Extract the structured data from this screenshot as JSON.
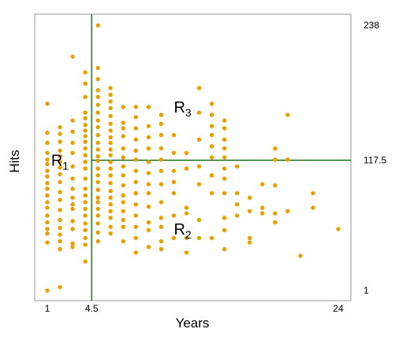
{
  "chart_data": {
    "type": "scatter",
    "title": "",
    "xlabel": "Years",
    "ylabel": "Hits",
    "xlim": [
      0.0,
      25.0
    ],
    "ylim": [
      -8.0,
      248.0
    ],
    "x_ticks": [
      {
        "value": 1,
        "label": "1"
      },
      {
        "value": 4.5,
        "label": "4.5"
      },
      {
        "value": 24,
        "label": "24"
      }
    ],
    "y_ticks_right": [
      {
        "value": 238,
        "label": "238"
      },
      {
        "value": 117.5,
        "label": "117.5"
      },
      {
        "value": 1,
        "label": "1"
      }
    ],
    "grid": false,
    "legend": "none",
    "colors": {
      "points": "#E69F00",
      "split_lines": "#006400",
      "frame": "#999999"
    },
    "split_lines": [
      {
        "orientation": "vertical",
        "x": 4.5,
        "y_from": -8,
        "y_to": 248
      },
      {
        "orientation": "horizontal",
        "y": 117.5,
        "x_from": 4.5,
        "x_to": 25
      }
    ],
    "regions": [
      {
        "main": "R",
        "sub": "1",
        "x": 1.3,
        "y": 117.5
      },
      {
        "main": "R",
        "sub": "3",
        "x": 11.0,
        "y": 165
      },
      {
        "main": "R",
        "sub": "2",
        "x": 11.0,
        "y": 56
      }
    ],
    "points": [
      [
        1,
        1
      ],
      [
        1,
        44
      ],
      [
        1,
        52
      ],
      [
        1,
        56
      ],
      [
        1,
        62
      ],
      [
        1,
        68
      ],
      [
        1,
        75
      ],
      [
        1,
        80
      ],
      [
        1,
        86
      ],
      [
        1,
        92
      ],
      [
        1,
        97
      ],
      [
        1,
        103
      ],
      [
        1,
        108
      ],
      [
        1,
        114
      ],
      [
        1,
        118
      ],
      [
        1,
        124
      ],
      [
        1,
        133
      ],
      [
        1,
        142
      ],
      [
        1,
        168
      ],
      [
        2,
        4
      ],
      [
        2,
        38
      ],
      [
        2,
        45
      ],
      [
        2,
        51
      ],
      [
        2,
        57
      ],
      [
        2,
        64
      ],
      [
        2,
        73
      ],
      [
        2,
        82
      ],
      [
        2,
        89
      ],
      [
        2,
        98
      ],
      [
        2,
        105
      ],
      [
        2,
        111
      ],
      [
        2,
        116
      ],
      [
        2,
        121
      ],
      [
        2,
        126
      ],
      [
        2,
        134
      ],
      [
        2,
        141
      ],
      [
        2,
        147
      ],
      [
        3,
        40
      ],
      [
        3,
        43
      ],
      [
        3,
        56
      ],
      [
        3,
        63
      ],
      [
        3,
        74
      ],
      [
        3,
        78
      ],
      [
        3,
        84
      ],
      [
        3,
        92
      ],
      [
        3,
        101
      ],
      [
        3,
        112
      ],
      [
        3,
        124
      ],
      [
        3,
        133
      ],
      [
        3,
        143
      ],
      [
        3,
        153
      ],
      [
        3,
        210
      ],
      [
        4,
        27
      ],
      [
        4,
        42
      ],
      [
        4,
        48
      ],
      [
        4,
        55
      ],
      [
        4,
        61
      ],
      [
        4,
        68
      ],
      [
        4,
        74
      ],
      [
        4,
        80
      ],
      [
        4,
        86
      ],
      [
        4,
        92
      ],
      [
        4,
        101
      ],
      [
        4,
        110
      ],
      [
        4,
        116
      ],
      [
        4,
        122
      ],
      [
        4,
        128
      ],
      [
        4,
        134
      ],
      [
        4,
        139
      ],
      [
        4,
        144
      ],
      [
        4,
        149
      ],
      [
        4,
        155
      ],
      [
        4,
        160
      ],
      [
        4,
        174
      ],
      [
        4,
        186
      ],
      [
        4,
        196
      ],
      [
        5,
        45
      ],
      [
        5,
        53
      ],
      [
        5,
        61
      ],
      [
        5,
        68
      ],
      [
        5,
        74
      ],
      [
        5,
        80
      ],
      [
        5,
        84
      ],
      [
        5,
        91
      ],
      [
        5,
        98
      ],
      [
        5,
        104
      ],
      [
        5,
        110
      ],
      [
        5,
        117
      ],
      [
        5,
        121
      ],
      [
        5,
        127
      ],
      [
        5,
        133
      ],
      [
        5,
        140
      ],
      [
        5,
        147
      ],
      [
        5,
        153
      ],
      [
        5,
        160
      ],
      [
        5,
        167
      ],
      [
        5,
        174
      ],
      [
        5,
        180
      ],
      [
        5,
        190
      ],
      [
        5,
        200
      ],
      [
        5,
        238
      ],
      [
        6,
        52
      ],
      [
        6,
        58
      ],
      [
        6,
        66
      ],
      [
        6,
        72
      ],
      [
        6,
        78
      ],
      [
        6,
        84
      ],
      [
        6,
        90
      ],
      [
        6,
        97
      ],
      [
        6,
        104
      ],
      [
        6,
        110
      ],
      [
        6,
        116
      ],
      [
        6,
        122
      ],
      [
        6,
        127
      ],
      [
        6,
        133
      ],
      [
        6,
        138
      ],
      [
        6,
        144
      ],
      [
        6,
        150
      ],
      [
        6,
        157
      ],
      [
        6,
        164
      ],
      [
        6,
        170
      ],
      [
        6,
        176
      ],
      [
        6,
        182
      ],
      [
        7,
        45
      ],
      [
        7,
        58
      ],
      [
        7,
        64
      ],
      [
        7,
        72
      ],
      [
        7,
        80
      ],
      [
        7,
        86
      ],
      [
        7,
        95
      ],
      [
        7,
        104
      ],
      [
        7,
        112
      ],
      [
        7,
        120
      ],
      [
        7,
        128
      ],
      [
        7,
        139
      ],
      [
        7,
        146
      ],
      [
        7,
        151
      ],
      [
        7,
        165
      ],
      [
        8,
        35
      ],
      [
        8,
        48
      ],
      [
        8,
        58
      ],
      [
        8,
        68
      ],
      [
        8,
        78
      ],
      [
        8,
        88
      ],
      [
        8,
        98
      ],
      [
        8,
        108
      ],
      [
        8,
        118
      ],
      [
        8,
        126
      ],
      [
        8,
        136
      ],
      [
        8,
        146
      ],
      [
        8,
        156
      ],
      [
        8,
        165
      ],
      [
        9,
        40
      ],
      [
        9,
        55
      ],
      [
        9,
        62
      ],
      [
        9,
        76
      ],
      [
        9,
        88
      ],
      [
        9,
        96
      ],
      [
        9,
        106
      ],
      [
        9,
        116
      ],
      [
        9,
        128
      ],
      [
        9,
        138
      ],
      [
        9,
        148
      ],
      [
        9,
        165
      ],
      [
        10,
        38
      ],
      [
        10,
        45
      ],
      [
        10,
        58
      ],
      [
        10,
        66
      ],
      [
        10,
        80
      ],
      [
        10,
        96
      ],
      [
        10,
        108
      ],
      [
        10,
        118
      ],
      [
        10,
        128
      ],
      [
        10,
        140
      ],
      [
        10,
        150
      ],
      [
        10,
        158
      ],
      [
        11,
        48
      ],
      [
        11,
        68
      ],
      [
        11,
        88
      ],
      [
        11,
        98
      ],
      [
        11,
        108
      ],
      [
        11,
        124
      ],
      [
        11,
        140
      ],
      [
        12,
        35
      ],
      [
        12,
        48
      ],
      [
        12,
        70
      ],
      [
        12,
        75
      ],
      [
        12,
        110
      ],
      [
        12,
        124
      ],
      [
        13,
        48
      ],
      [
        13,
        64
      ],
      [
        13,
        96
      ],
      [
        13,
        112
      ],
      [
        13,
        136
      ],
      [
        13,
        160
      ],
      [
        13,
        182
      ],
      [
        14,
        48
      ],
      [
        14,
        88
      ],
      [
        14,
        104
      ],
      [
        14,
        120
      ],
      [
        14,
        130
      ],
      [
        14,
        140
      ],
      [
        14,
        148
      ],
      [
        14,
        158
      ],
      [
        14,
        168
      ],
      [
        15,
        38
      ],
      [
        15,
        55
      ],
      [
        15,
        66
      ],
      [
        15,
        88
      ],
      [
        15,
        101
      ],
      [
        15,
        110
      ],
      [
        15,
        120
      ],
      [
        15,
        128
      ],
      [
        15,
        136
      ],
      [
        15,
        146
      ],
      [
        15,
        153
      ],
      [
        16,
        68
      ],
      [
        16,
        78
      ],
      [
        16,
        88
      ],
      [
        16,
        112
      ],
      [
        17,
        44
      ],
      [
        17,
        48
      ],
      [
        17,
        72
      ],
      [
        17,
        84
      ],
      [
        18,
        70
      ],
      [
        18,
        75
      ],
      [
        18,
        96
      ],
      [
        19,
        62
      ],
      [
        19,
        70
      ],
      [
        19,
        95
      ],
      [
        19,
        118
      ],
      [
        19,
        128
      ],
      [
        20,
        72
      ],
      [
        20,
        118
      ],
      [
        20,
        158
      ],
      [
        21,
        32
      ],
      [
        22,
        75
      ],
      [
        22,
        88
      ],
      [
        24,
        56
      ]
    ]
  }
}
